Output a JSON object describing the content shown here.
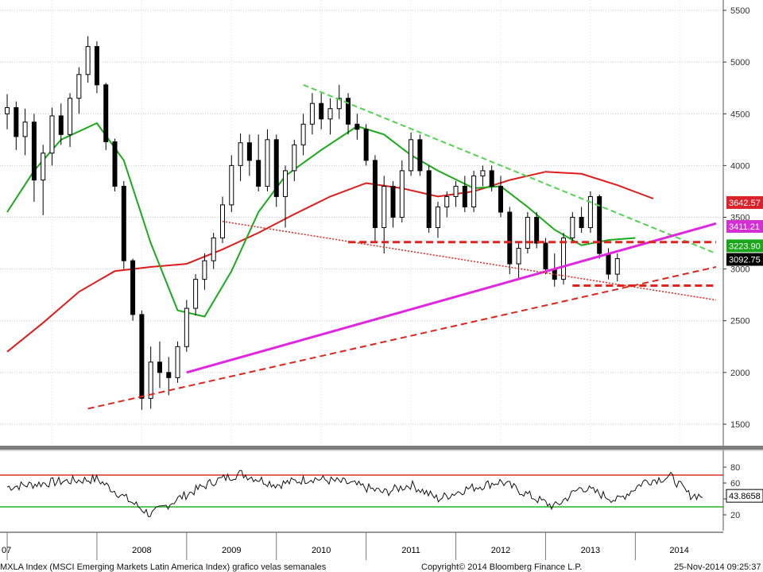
{
  "chart_data": [
    {
      "type": "line",
      "subtype": "candlestick",
      "ylim": [
        1300,
        5600
      ],
      "yticks": [
        1500,
        2000,
        2500,
        3000,
        3500,
        4000,
        4500,
        5000,
        5500
      ],
      "grid": "horizontal-dotted",
      "axis_position": "right",
      "candles": [
        {
          "t": 2007.0,
          "o": 4500,
          "h": 4690,
          "l": 4350,
          "c": 4560
        },
        {
          "t": 2007.1,
          "o": 4560,
          "h": 4620,
          "l": 4150,
          "c": 4280
        },
        {
          "t": 2007.2,
          "o": 4280,
          "h": 4550,
          "l": 4100,
          "c": 4420
        },
        {
          "t": 2007.3,
          "o": 4420,
          "h": 4500,
          "l": 3650,
          "c": 3860
        },
        {
          "t": 2007.4,
          "o": 3860,
          "h": 4200,
          "l": 3520,
          "c": 4120
        },
        {
          "t": 2007.5,
          "o": 4120,
          "h": 4560,
          "l": 4000,
          "c": 4480
        },
        {
          "t": 2007.6,
          "o": 4480,
          "h": 4600,
          "l": 4200,
          "c": 4300
        },
        {
          "t": 2007.7,
          "o": 4300,
          "h": 4700,
          "l": 4180,
          "c": 4650
        },
        {
          "t": 2007.8,
          "o": 4650,
          "h": 4950,
          "l": 4500,
          "c": 4880
        },
        {
          "t": 2007.9,
          "o": 4880,
          "h": 5250,
          "l": 4800,
          "c": 5150
        },
        {
          "t": 2008.0,
          "o": 5150,
          "h": 5200,
          "l": 4700,
          "c": 4780
        },
        {
          "t": 2008.1,
          "o": 4780,
          "h": 4800,
          "l": 4150,
          "c": 4230
        },
        {
          "t": 2008.2,
          "o": 4230,
          "h": 4260,
          "l": 3750,
          "c": 3800
        },
        {
          "t": 2008.3,
          "o": 3800,
          "h": 3850,
          "l": 3000,
          "c": 3080
        },
        {
          "t": 2008.4,
          "o": 3080,
          "h": 3100,
          "l": 2500,
          "c": 2560
        },
        {
          "t": 2008.5,
          "o": 2560,
          "h": 2600,
          "l": 1640,
          "c": 1750
        },
        {
          "t": 2008.6,
          "o": 1750,
          "h": 2250,
          "l": 1650,
          "c": 2100
        },
        {
          "t": 2008.7,
          "o": 2100,
          "h": 2300,
          "l": 1850,
          "c": 2000
        },
        {
          "t": 2008.8,
          "o": 2000,
          "h": 2150,
          "l": 1780,
          "c": 1950
        },
        {
          "t": 2008.9,
          "o": 1950,
          "h": 2300,
          "l": 1900,
          "c": 2250
        },
        {
          "t": 2009.0,
          "o": 2250,
          "h": 2700,
          "l": 2200,
          "c": 2620
        },
        {
          "t": 2009.1,
          "o": 2620,
          "h": 2950,
          "l": 2550,
          "c": 2900
        },
        {
          "t": 2009.2,
          "o": 2900,
          "h": 3150,
          "l": 2800,
          "c": 3080
        },
        {
          "t": 2009.3,
          "o": 3080,
          "h": 3350,
          "l": 3000,
          "c": 3300
        },
        {
          "t": 2009.4,
          "o": 3300,
          "h": 3700,
          "l": 3250,
          "c": 3620
        },
        {
          "t": 2009.5,
          "o": 3620,
          "h": 4100,
          "l": 3550,
          "c": 4000
        },
        {
          "t": 2009.6,
          "o": 4000,
          "h": 4310,
          "l": 3850,
          "c": 4220
        },
        {
          "t": 2009.7,
          "o": 4220,
          "h": 4300,
          "l": 3900,
          "c": 4050
        },
        {
          "t": 2009.8,
          "o": 4050,
          "h": 4300,
          "l": 3750,
          "c": 3800
        },
        {
          "t": 2009.9,
          "o": 3800,
          "h": 4350,
          "l": 3750,
          "c": 4250
        },
        {
          "t": 2010.0,
          "o": 4250,
          "h": 4300,
          "l": 3600,
          "c": 3700
        },
        {
          "t": 2010.1,
          "o": 3700,
          "h": 4000,
          "l": 3400,
          "c": 3950
        },
        {
          "t": 2010.2,
          "o": 3950,
          "h": 4250,
          "l": 3850,
          "c": 4200
        },
        {
          "t": 2010.3,
          "o": 4200,
          "h": 4500,
          "l": 4100,
          "c": 4400
        },
        {
          "t": 2010.4,
          "o": 4400,
          "h": 4700,
          "l": 4300,
          "c": 4600
        },
        {
          "t": 2010.5,
          "o": 4600,
          "h": 4700,
          "l": 4350,
          "c": 4450
        },
        {
          "t": 2010.6,
          "o": 4450,
          "h": 4650,
          "l": 4300,
          "c": 4550
        },
        {
          "t": 2010.7,
          "o": 4550,
          "h": 4780,
          "l": 4450,
          "c": 4650
        },
        {
          "t": 2010.8,
          "o": 4650,
          "h": 4700,
          "l": 4300,
          "c": 4400
        },
        {
          "t": 2010.9,
          "o": 4400,
          "h": 4500,
          "l": 4250,
          "c": 4350
        },
        {
          "t": 2011.0,
          "o": 4350,
          "h": 4400,
          "l": 4000,
          "c": 4050
        },
        {
          "t": 2011.1,
          "o": 4050,
          "h": 4100,
          "l": 3250,
          "c": 3400
        },
        {
          "t": 2011.2,
          "o": 3400,
          "h": 3900,
          "l": 3150,
          "c": 3800
        },
        {
          "t": 2011.3,
          "o": 3800,
          "h": 3850,
          "l": 3400,
          "c": 3500
        },
        {
          "t": 2011.4,
          "o": 3500,
          "h": 4050,
          "l": 3450,
          "c": 3950
        },
        {
          "t": 2011.5,
          "o": 3950,
          "h": 4320,
          "l": 3900,
          "c": 4250
        },
        {
          "t": 2011.6,
          "o": 4250,
          "h": 4300,
          "l": 3900,
          "c": 3950
        },
        {
          "t": 2011.7,
          "o": 3950,
          "h": 4000,
          "l": 3350,
          "c": 3400
        },
        {
          "t": 2011.8,
          "o": 3400,
          "h": 3650,
          "l": 3300,
          "c": 3600
        },
        {
          "t": 2011.9,
          "o": 3600,
          "h": 3750,
          "l": 3500,
          "c": 3700
        },
        {
          "t": 2012.0,
          "o": 3700,
          "h": 3850,
          "l": 3600,
          "c": 3800
        },
        {
          "t": 2012.1,
          "o": 3800,
          "h": 3900,
          "l": 3550,
          "c": 3600
        },
        {
          "t": 2012.2,
          "o": 3600,
          "h": 3950,
          "l": 3550,
          "c": 3900
        },
        {
          "t": 2012.3,
          "o": 3900,
          "h": 4000,
          "l": 3800,
          "c": 3950
        },
        {
          "t": 2012.4,
          "o": 3950,
          "h": 4000,
          "l": 3750,
          "c": 3800
        },
        {
          "t": 2012.5,
          "o": 3800,
          "h": 3900,
          "l": 3500,
          "c": 3550
        },
        {
          "t": 2012.6,
          "o": 3550,
          "h": 3600,
          "l": 2950,
          "c": 3050
        },
        {
          "t": 2012.7,
          "o": 3050,
          "h": 3250,
          "l": 2900,
          "c": 3200
        },
        {
          "t": 2012.8,
          "o": 3200,
          "h": 3550,
          "l": 3150,
          "c": 3500
        },
        {
          "t": 2012.9,
          "o": 3500,
          "h": 3550,
          "l": 3200,
          "c": 3250
        },
        {
          "t": 2013.0,
          "o": 3250,
          "h": 3300,
          "l": 2950,
          "c": 3000
        },
        {
          "t": 2013.1,
          "o": 3000,
          "h": 3150,
          "l": 2830,
          "c": 2900
        },
        {
          "t": 2013.2,
          "o": 2900,
          "h": 3350,
          "l": 2850,
          "c": 3300
        },
        {
          "t": 2013.3,
          "o": 3300,
          "h": 3550,
          "l": 3250,
          "c": 3500
        },
        {
          "t": 2013.4,
          "o": 3500,
          "h": 3600,
          "l": 3350,
          "c": 3400
        },
        {
          "t": 2013.5,
          "o": 3400,
          "h": 3750,
          "l": 3350,
          "c": 3700
        },
        {
          "t": 2013.6,
          "o": 3700,
          "h": 3720,
          "l": 3100,
          "c": 3150
        },
        {
          "t": 2013.7,
          "o": 3150,
          "h": 3200,
          "l": 2900,
          "c": 2950
        },
        {
          "t": 2013.8,
          "o": 2950,
          "h": 3150,
          "l": 2880,
          "c": 3100
        }
      ]
    },
    {
      "type": "line",
      "ylim": [
        0,
        100
      ],
      "yticks": [
        20,
        40,
        60,
        80
      ],
      "axis_position": "right"
    }
  ],
  "price_tags": [
    {
      "label": "3642.57",
      "bg": "#d9222a",
      "fg": "#ffffff"
    },
    {
      "label": "3411.21",
      "bg": "#d230d2",
      "fg": "#ffffff"
    },
    {
      "label": "3223.90",
      "bg": "#19a619",
      "fg": "#ffffff"
    },
    {
      "label": "3092.75",
      "bg": "#000000",
      "fg": "#ffffff"
    }
  ],
  "indicator_tag": {
    "label": "43.8658",
    "bg": "#ffffff",
    "fg": "#000000"
  },
  "x_axis": {
    "labels": [
      "07",
      "2008",
      "2009",
      "2010",
      "2011",
      "2012",
      "2013",
      "2014"
    ],
    "positions": [
      2007,
      2008,
      2009,
      2010,
      2011,
      2012,
      2013,
      2014
    ]
  },
  "footer": {
    "left": "MXLA Index (MSCI Emerging Markets Latin America Index) grafico velas semanales",
    "center": "Copyright© 2014 Bloomberg Finance L.P.",
    "right": "25-Nov-2014 09:25:37"
  },
  "colors": {
    "ma_fast": "#1aaa1a",
    "ma_slow": "#dd1c1c",
    "pink_trend": "#e027e0",
    "green_trend": "#52d452",
    "support": "#e0231b",
    "rsi_upper": "#d93025",
    "rsi_lower": "#25b325"
  }
}
